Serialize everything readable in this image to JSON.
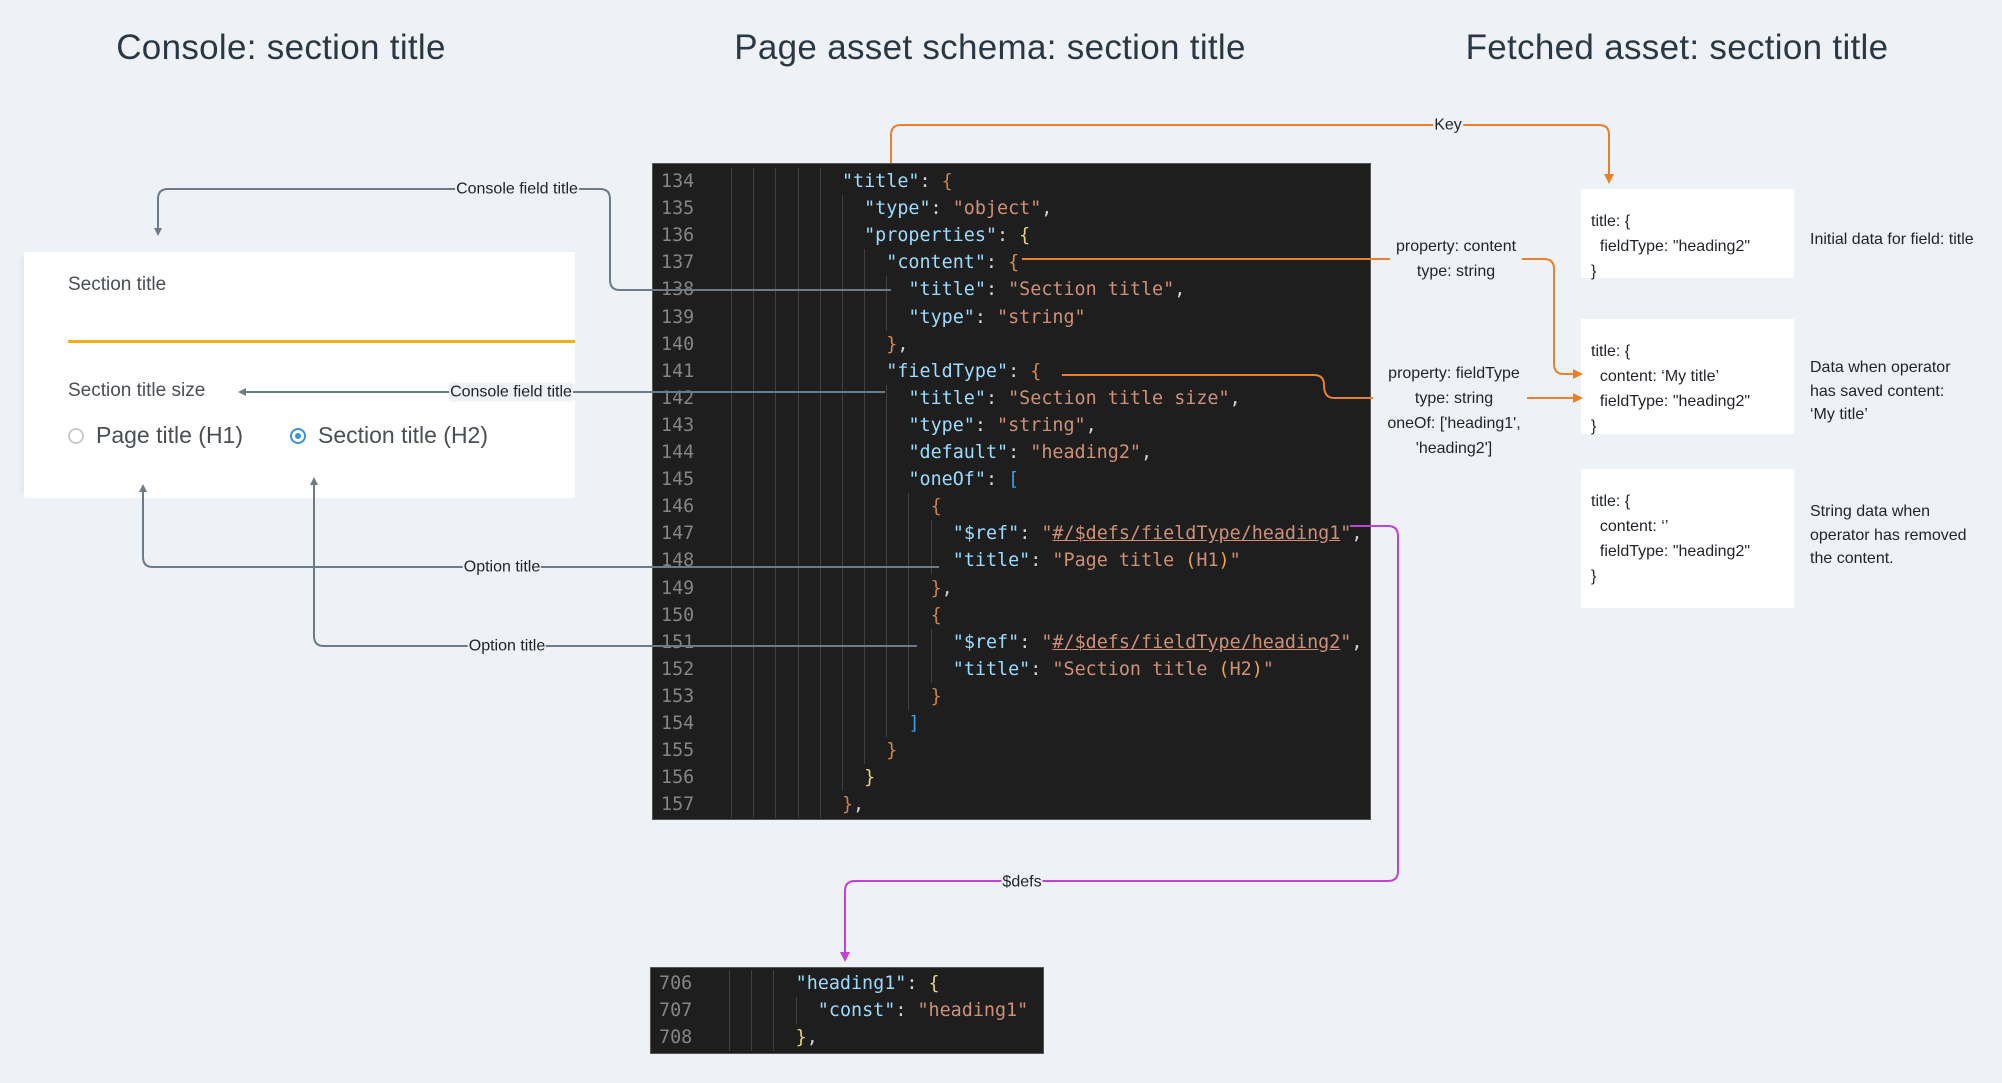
{
  "headings": {
    "console": "Console: section title",
    "schema": "Page asset schema: section title",
    "fetched": "Fetched asset: section title"
  },
  "console_panel": {
    "field_title": "Section title",
    "field_value": "",
    "size_title": "Section title size",
    "options": [
      {
        "label": "Page title (H1)",
        "selected": false
      },
      {
        "label": "Section title (H2)",
        "selected": true
      }
    ],
    "accent_color": "#f6ae14",
    "radio_color": "#3b93d8"
  },
  "annotations": {
    "key": "Key",
    "console_field_title_1": "Console field title",
    "console_field_title_2": "Console field title",
    "option_title_1": "Option title",
    "option_title_2": "Option title",
    "property_content": "property: content\ntype: string",
    "property_fieldtype": "property: fieldType\ntype: string\noneOf: ['heading1',\n'heading2']",
    "defs": "$defs"
  },
  "connector_colors": {
    "console": "#6c7b87",
    "fetched": "#e8802e",
    "defs": "#c23fd8"
  },
  "schema_editor": {
    "lines": [
      {
        "n": "134",
        "i": 12,
        "t": [
          [
            "\"title\"",
            "k"
          ],
          [
            ": ",
            "p"
          ],
          [
            "{",
            "b1"
          ]
        ]
      },
      {
        "n": "135",
        "i": 14,
        "t": [
          [
            "\"type\"",
            "k"
          ],
          [
            ": ",
            "p"
          ],
          [
            "\"object\"",
            "s"
          ],
          [
            ",",
            "p"
          ]
        ]
      },
      {
        "n": "136",
        "i": 14,
        "t": [
          [
            "\"properties\"",
            "k"
          ],
          [
            ": ",
            "p"
          ],
          [
            "{",
            "b2"
          ]
        ]
      },
      {
        "n": "137",
        "i": 16,
        "t": [
          [
            "\"content\"",
            "k"
          ],
          [
            ": ",
            "p"
          ],
          [
            "{",
            "b3"
          ]
        ]
      },
      {
        "n": "138",
        "i": 18,
        "t": [
          [
            "\"title\"",
            "k"
          ],
          [
            ": ",
            "p"
          ],
          [
            "\"Section title\"",
            "s"
          ],
          [
            ",",
            "p"
          ]
        ]
      },
      {
        "n": "139",
        "i": 18,
        "t": [
          [
            "\"type\"",
            "k"
          ],
          [
            ": ",
            "p"
          ],
          [
            "\"string\"",
            "s"
          ]
        ]
      },
      {
        "n": "140",
        "i": 16,
        "t": [
          [
            "}",
            "b3"
          ],
          [
            ",",
            "p"
          ]
        ]
      },
      {
        "n": "141",
        "i": 16,
        "t": [
          [
            "\"fieldType\"",
            "k"
          ],
          [
            ": ",
            "p"
          ],
          [
            "{",
            "b3"
          ]
        ]
      },
      {
        "n": "142",
        "i": 18,
        "t": [
          [
            "\"title\"",
            "k"
          ],
          [
            ": ",
            "p"
          ],
          [
            "\"Section title size\"",
            "s"
          ],
          [
            ",",
            "p"
          ]
        ]
      },
      {
        "n": "143",
        "i": 18,
        "t": [
          [
            "\"type\"",
            "k"
          ],
          [
            ": ",
            "p"
          ],
          [
            "\"string\"",
            "s"
          ],
          [
            ",",
            "p"
          ]
        ]
      },
      {
        "n": "144",
        "i": 18,
        "t": [
          [
            "\"default\"",
            "k"
          ],
          [
            ": ",
            "p"
          ],
          [
            "\"heading2\"",
            "s"
          ],
          [
            ",",
            "p"
          ]
        ]
      },
      {
        "n": "145",
        "i": 18,
        "t": [
          [
            "\"oneOf\"",
            "k"
          ],
          [
            ": ",
            "p"
          ],
          [
            "[",
            "bb"
          ]
        ]
      },
      {
        "n": "146",
        "i": 20,
        "t": [
          [
            "{",
            "b1"
          ]
        ]
      },
      {
        "n": "147",
        "i": 22,
        "t": [
          [
            "\"$ref\"",
            "k"
          ],
          [
            ": ",
            "p"
          ],
          [
            "\"",
            "s"
          ],
          [
            "#/$defs/fieldType/heading1",
            "u"
          ],
          [
            "\"",
            "s"
          ],
          [
            ",",
            "p"
          ]
        ]
      },
      {
        "n": "148",
        "i": 22,
        "t": [
          [
            "\"title\"",
            "k"
          ],
          [
            ": ",
            "p"
          ],
          [
            "\"Page title ",
            "s"
          ],
          [
            "(",
            "hp"
          ],
          [
            "H1",
            "s"
          ],
          [
            ")",
            "hp"
          ],
          [
            "\"",
            "s"
          ]
        ]
      },
      {
        "n": "149",
        "i": 20,
        "t": [
          [
            "}",
            "b1"
          ],
          [
            ",",
            "p"
          ]
        ]
      },
      {
        "n": "150",
        "i": 20,
        "t": [
          [
            "{",
            "b1"
          ]
        ]
      },
      {
        "n": "151",
        "i": 22,
        "t": [
          [
            "\"$ref\"",
            "k"
          ],
          [
            ": ",
            "p"
          ],
          [
            "\"",
            "s"
          ],
          [
            "#/$defs/fieldType/heading2",
            "u"
          ],
          [
            "\"",
            "s"
          ],
          [
            ",",
            "p"
          ]
        ]
      },
      {
        "n": "152",
        "i": 22,
        "t": [
          [
            "\"title\"",
            "k"
          ],
          [
            ": ",
            "p"
          ],
          [
            "\"Section title ",
            "s"
          ],
          [
            "(",
            "hp"
          ],
          [
            "H2",
            "s"
          ],
          [
            ")",
            "hp"
          ],
          [
            "\"",
            "s"
          ]
        ]
      },
      {
        "n": "153",
        "i": 20,
        "t": [
          [
            "}",
            "b1"
          ]
        ]
      },
      {
        "n": "154",
        "i": 18,
        "t": [
          [
            "]",
            "bb"
          ]
        ]
      },
      {
        "n": "155",
        "i": 16,
        "t": [
          [
            "}",
            "b3"
          ]
        ]
      },
      {
        "n": "156",
        "i": 14,
        "t": [
          [
            "}",
            "b2"
          ]
        ]
      },
      {
        "n": "157",
        "i": 12,
        "t": [
          [
            "}",
            "b1"
          ],
          [
            ",",
            "p"
          ]
        ]
      }
    ]
  },
  "defs_editor": {
    "lines": [
      {
        "n": "706",
        "i": 8,
        "t": [
          [
            "\"heading1\"",
            "k"
          ],
          [
            ": ",
            "p"
          ],
          [
            "{",
            "b2"
          ]
        ]
      },
      {
        "n": "707",
        "i": 10,
        "t": [
          [
            "\"const\"",
            "k"
          ],
          [
            ": ",
            "p"
          ],
          [
            "\"heading1\"",
            "s"
          ]
        ]
      },
      {
        "n": "708",
        "i": 8,
        "t": [
          [
            "}",
            "b2"
          ],
          [
            ",",
            "p"
          ]
        ]
      }
    ]
  },
  "fetched": [
    {
      "data": "title: {\n  fieldType: \"heading2\"\n}",
      "note": "Initial data for field: title"
    },
    {
      "data": "title: {\n  content: ‘My title’\n  fieldType: \"heading2\"\n}",
      "note": "Data when operator\nhas saved content:\n‘My title’"
    },
    {
      "data": "title: {\n  content: ‘’\n  fieldType: \"heading2\"\n}",
      "note": "String data when\noperator has removed\nthe content."
    }
  ]
}
